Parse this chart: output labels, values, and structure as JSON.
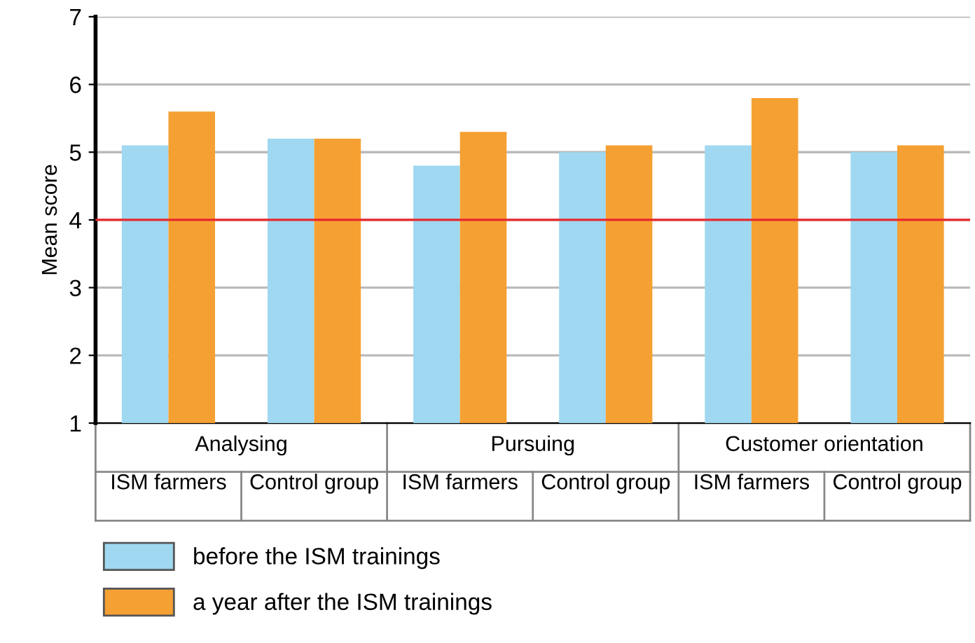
{
  "chart_data": {
    "type": "bar",
    "ylabel": "Mean score",
    "categories": [
      "ISM farmers",
      "Control group",
      "ISM farmers",
      "Control group",
      "ISM farmers",
      "Control group"
    ],
    "annotations": [
      "Analysing",
      "Pursuing",
      "Customer orientation"
    ],
    "series": [
      {
        "name": "before the ISM trainings",
        "color": "#9fd8f0",
        "values": [
          5.1,
          5.2,
          4.8,
          5.0,
          5.1,
          5.0
        ]
      },
      {
        "name": "a year after the ISM trainings",
        "color": "#f5a033",
        "values": [
          5.6,
          5.2,
          5.3,
          5.1,
          5.8,
          5.1
        ]
      }
    ],
    "ylim": [
      1,
      7
    ],
    "yticks": [
      1,
      2,
      3,
      4,
      5,
      6,
      7
    ],
    "grid": "y",
    "legend": "bottom left",
    "ref_lines": [
      {
        "axis": "y",
        "value": 4,
        "color": "#e8292e"
      }
    ]
  }
}
